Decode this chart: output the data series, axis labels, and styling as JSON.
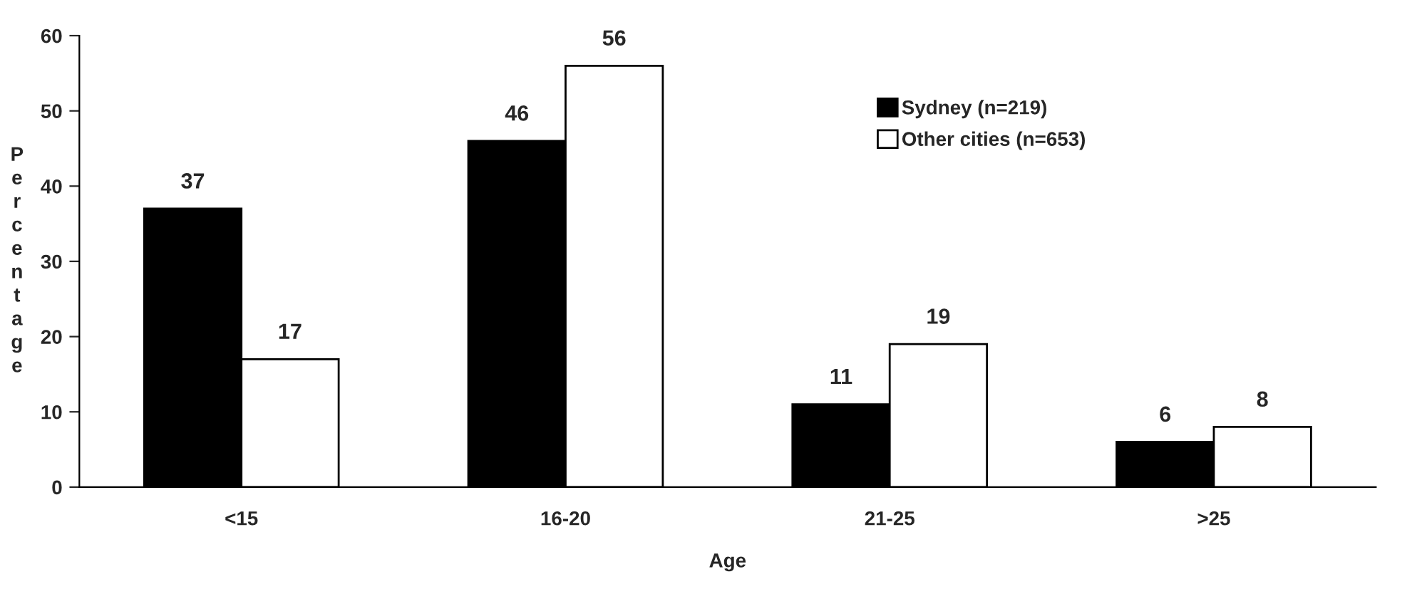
{
  "chart_data": {
    "type": "bar",
    "xlabel": "Age",
    "ylabel": "Percentage",
    "categories": [
      "<15",
      "16-20",
      "21-25",
      ">25"
    ],
    "series": [
      {
        "name": "Sydney (n=219)",
        "color": "#000000",
        "values": [
          37,
          46,
          11,
          6
        ]
      },
      {
        "name": "Other cities (n=653)",
        "color": "#ffffff",
        "values": [
          17,
          56,
          19,
          8
        ]
      }
    ],
    "ylim": [
      0,
      60
    ],
    "yticks": [
      0,
      10,
      20,
      30,
      40,
      50,
      60
    ],
    "grid": false,
    "legend": "top right",
    "data_labels": true
  }
}
